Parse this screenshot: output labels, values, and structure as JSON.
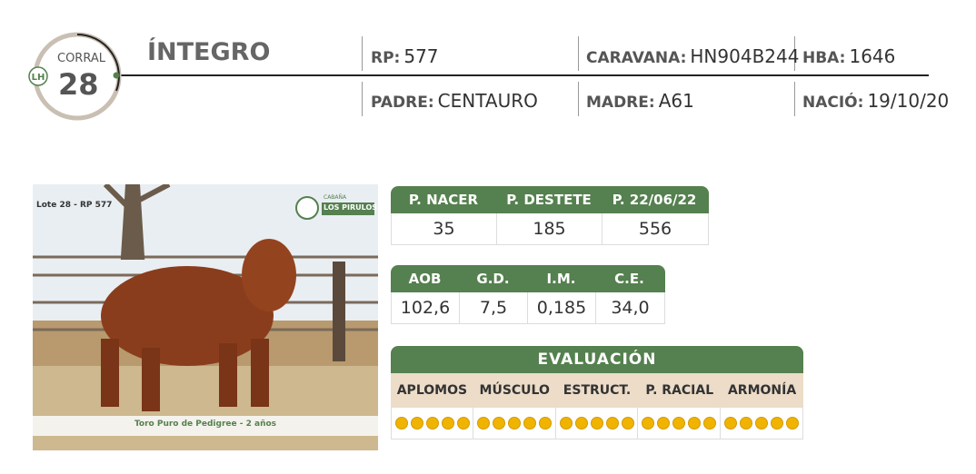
{
  "header": {
    "corral_label": "CORRAL",
    "corral_number": "28",
    "name": "ÍNTEGRO",
    "fields": [
      {
        "label": "RP:",
        "value": "577"
      },
      {
        "label": "CARAVANA:",
        "value": "HN904B244"
      },
      {
        "label": "HBA:",
        "value": "1646"
      },
      {
        "label": "PADRE:",
        "value": "CENTAURO"
      },
      {
        "label": "MADRE:",
        "value": "A61"
      },
      {
        "label": "NACIÓ:",
        "value": "19/10/20"
      }
    ]
  },
  "photo": {
    "lot": "Lote 28 - RP 577",
    "brand_top": "CABAÑA",
    "brand": "LOS PIRULOS",
    "caption": "Toro Puro de Pedigree - 2 años"
  },
  "weights": {
    "headers": [
      "P. NACER",
      "P. DESTETE",
      "P.  22/06/22"
    ],
    "values": [
      "35",
      "185",
      "556"
    ]
  },
  "measures": {
    "headers": [
      "AOB",
      "G.D.",
      "I.M.",
      "C.E."
    ],
    "values": [
      "102,6",
      "7,5",
      "0,185",
      "34,0"
    ]
  },
  "evaluation": {
    "title": "EVALUACIÓN",
    "headers": [
      "APLOMOS",
      "MÚSCULO",
      "ESTRUCT.",
      "P. RACIAL",
      "ARMONÍA"
    ],
    "scores": [
      5,
      5,
      5,
      5,
      5
    ]
  }
}
